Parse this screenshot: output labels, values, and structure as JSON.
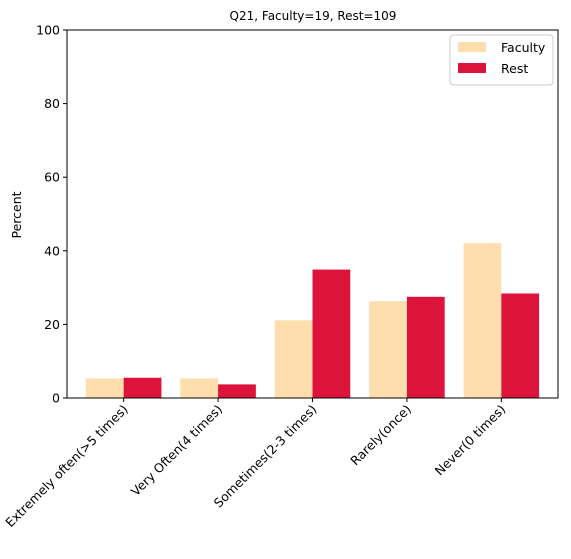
{
  "chart_data": {
    "type": "bar",
    "title": "Q21, Faculty=19, Rest=109",
    "xlabel": "",
    "ylabel": "Percent",
    "ylim": [
      0,
      100
    ],
    "yticks": [
      0,
      20,
      40,
      60,
      80,
      100
    ],
    "grid": false,
    "legend_position": "top-right",
    "categories": [
      "Extremely often(>5 times)",
      "Very Often(4 times)",
      "Sometimes(2-3 times)",
      "Rarely(once)",
      "Never(0 times)"
    ],
    "series": [
      {
        "name": "Faculty",
        "color": "#ffdead",
        "values": [
          5.3,
          5.3,
          21.1,
          26.3,
          42.1
        ]
      },
      {
        "name": "Rest",
        "color": "#dc143c",
        "values": [
          5.5,
          3.7,
          34.9,
          27.5,
          28.4
        ]
      }
    ]
  }
}
